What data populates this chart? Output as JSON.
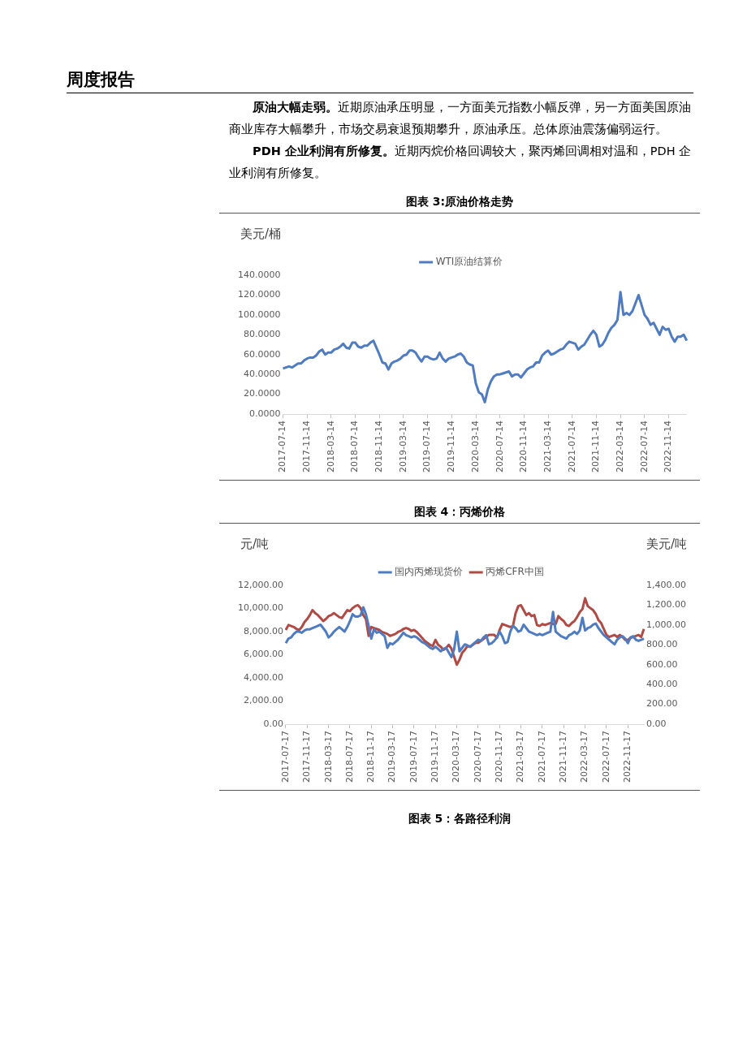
{
  "chart_data": [
    {
      "type": "other",
      "title": "周度报告",
      "annotations": [
        "原油大幅走弱。",
        "近期原油承压明显，一方面美元指数小幅反弹，另一方面美国原油商业库存大幅攀升，市场交易衰退预期攀升，原油承压。总体原油震荡偏弱运行。",
        "PDH 企业利润有所修复。",
        "近期丙烷价格回调较大，聚丙烯回调相对温和，PDH 企业利润有所修复。"
      ]
    },
    {
      "type": "line",
      "title": "图表 3:原油价格走势",
      "ylabel": "美元/桶",
      "legend": "top",
      "categories": [
        "2017-07-14",
        null,
        null,
        null,
        null,
        null,
        null,
        null,
        "2017-11-14",
        null,
        null,
        null,
        null,
        null,
        null,
        null,
        "2018-03-14",
        null,
        null,
        null,
        null,
        null,
        null,
        null,
        "2018-07-14",
        null,
        null,
        null,
        null,
        null,
        null,
        null,
        "2018-11-14",
        null,
        null,
        null,
        null,
        null,
        null,
        null,
        "2019-03-14",
        null,
        null,
        null,
        null,
        null,
        null,
        null,
        "2019-07-14",
        null,
        null,
        null,
        null,
        null,
        null,
        null,
        "2019-11-14",
        null,
        null,
        null,
        null,
        null,
        null,
        null,
        "2020-03-14",
        null,
        null,
        null,
        null,
        null,
        null,
        null,
        "2020-07-14",
        null,
        null,
        null,
        null,
        null,
        null,
        null,
        "2020-11-14",
        null,
        null,
        null,
        null,
        null,
        null,
        null,
        "2021-03-14",
        null,
        null,
        null,
        null,
        null,
        null,
        null,
        "2021-07-14",
        null,
        null,
        null,
        null,
        null,
        null,
        null,
        "2021-11-14",
        null,
        null,
        null,
        null,
        null,
        null,
        null,
        "2022-03-14",
        null,
        null,
        null,
        null,
        null,
        null,
        null,
        "2022-07-14",
        null,
        null,
        null,
        null,
        null,
        null,
        null,
        "2022-11-14",
        null,
        null,
        null,
        null,
        null,
        null
      ],
      "ylim": [
        0,
        140
      ],
      "yticks": [
        {
          "value": 0,
          "label": "0.0000"
        },
        {
          "value": 20,
          "label": "20.0000"
        },
        {
          "value": 40,
          "label": "40.0000"
        },
        {
          "value": 60,
          "label": "60.0000"
        },
        {
          "value": 80,
          "label": "80.0000"
        },
        {
          "value": 100,
          "label": "100.0000"
        },
        {
          "value": 120,
          "label": "120.0000"
        },
        {
          "value": 140,
          "label": "140.0000"
        }
      ],
      "series": [
        {
          "name": "WTI原油结算价",
          "color": "#4f7cc0",
          "values": [
            46,
            47,
            48,
            47,
            49,
            51,
            51,
            54,
            56,
            57,
            57,
            59,
            63,
            65,
            60,
            62,
            62,
            65,
            66,
            68,
            71,
            67,
            66,
            72,
            72,
            68,
            67,
            69,
            69,
            72,
            74,
            67,
            60,
            52,
            51,
            45,
            51,
            53,
            54,
            56,
            59,
            60,
            64,
            64,
            62,
            57,
            53,
            58,
            58,
            56,
            55,
            56,
            62,
            56,
            53,
            56,
            57,
            58,
            60,
            61,
            58,
            52,
            50,
            49,
            31,
            22,
            20,
            12,
            25,
            33,
            38,
            40,
            40,
            41,
            42,
            43,
            38,
            40,
            40,
            37,
            41,
            45,
            47,
            48,
            52,
            52,
            59,
            62,
            64,
            60,
            61,
            63,
            65,
            66,
            70,
            73,
            72,
            71,
            65,
            68,
            70,
            75,
            80,
            84,
            80,
            68,
            70,
            75,
            82,
            87,
            90,
            95,
            123,
            100,
            102,
            100,
            104,
            112,
            120,
            110,
            100,
            96,
            90,
            92,
            86,
            80,
            88,
            85,
            86,
            78,
            73,
            78,
            78,
            80,
            74
          ]
        }
      ]
    },
    {
      "type": "line",
      "title": "图表 4：丙烯价格",
      "ylabel": "元/吨",
      "y2label": "美元/吨",
      "legend": "top",
      "categories": [
        "2017-07-17",
        null,
        null,
        null,
        null,
        null,
        null,
        null,
        "2017-11-17",
        null,
        null,
        null,
        null,
        null,
        null,
        null,
        "2018-03-17",
        null,
        null,
        null,
        null,
        null,
        null,
        null,
        "2018-07-17",
        null,
        null,
        null,
        null,
        null,
        null,
        null,
        "2018-11-17",
        null,
        null,
        null,
        null,
        null,
        null,
        null,
        "2019-03-17",
        null,
        null,
        null,
        null,
        null,
        null,
        null,
        "2019-07-17",
        null,
        null,
        null,
        null,
        null,
        null,
        null,
        "2019-11-17",
        null,
        null,
        null,
        null,
        null,
        null,
        null,
        "2020-03-17",
        null,
        null,
        null,
        null,
        null,
        null,
        null,
        "2020-07-17",
        null,
        null,
        null,
        null,
        null,
        null,
        null,
        "2020-11-17",
        null,
        null,
        null,
        null,
        null,
        null,
        null,
        "2021-03-17",
        null,
        null,
        null,
        null,
        null,
        null,
        null,
        "2021-07-17",
        null,
        null,
        null,
        null,
        null,
        null,
        null,
        "2021-11-17",
        null,
        null,
        null,
        null,
        null,
        null,
        null,
        "2022-03-17",
        null,
        null,
        null,
        null,
        null,
        null,
        null,
        "2022-07-17",
        null,
        null,
        null,
        null,
        null,
        null,
        null,
        "2022-11-17",
        null,
        null,
        null,
        null,
        null,
        null
      ],
      "ylim": [
        0,
        12000
      ],
      "yticks": [
        {
          "value": 0,
          "label": "0.00"
        },
        {
          "value": 2000,
          "label": "2,000.00"
        },
        {
          "value": 4000,
          "label": "4,000.00"
        },
        {
          "value": 6000,
          "label": "6,000.00"
        },
        {
          "value": 8000,
          "label": "8,000.00"
        },
        {
          "value": 10000,
          "label": "10,000.00"
        },
        {
          "value": 12000,
          "label": "12,000.00"
        }
      ],
      "y2lim": [
        0,
        1400
      ],
      "y2ticks": [
        {
          "value": 0,
          "label": "0.00"
        },
        {
          "value": 200,
          "label": "200.00"
        },
        {
          "value": 400,
          "label": "400.00"
        },
        {
          "value": 600,
          "label": "600.00"
        },
        {
          "value": 800,
          "label": "800.00"
        },
        {
          "value": 1000,
          "label": "1,000.00"
        },
        {
          "value": 1200,
          "label": "1,200.00"
        },
        {
          "value": 1400,
          "label": "1,400.00"
        }
      ],
      "series": [
        {
          "name": "国内丙烯现货价",
          "color": "#4f7cc0",
          "values": [
            7000,
            7400,
            7500,
            7800,
            8000,
            8000,
            7900,
            8100,
            8200,
            8200,
            8300,
            8400,
            8500,
            8600,
            8300,
            8000,
            7500,
            7700,
            8000,
            8200,
            8400,
            8200,
            8000,
            8400,
            8900,
            9500,
            9300,
            9300,
            9400,
            10100,
            9500,
            8500,
            7400,
            8200,
            7900,
            8000,
            7800,
            7600,
            6600,
            7000,
            6900,
            7100,
            7300,
            7600,
            7900,
            7700,
            7600,
            7500,
            7600,
            7500,
            7300,
            7100,
            7000,
            6800,
            6600,
            6500,
            6700,
            6500,
            6300,
            6500,
            6600,
            6200,
            5800,
            6500,
            8000,
            6300,
            6600,
            6900,
            6800,
            6700,
            6900,
            7100,
            7300,
            7200,
            7500,
            7700,
            6900,
            7000,
            7200,
            7500,
            8000,
            7600,
            7000,
            7100,
            8000,
            8500,
            8300,
            8000,
            8100,
            8600,
            8300,
            8000,
            7900,
            7800,
            7700,
            7800,
            7700,
            7800,
            7900,
            8000,
            9700,
            8000,
            7800,
            7600,
            7500,
            7400,
            7700,
            7800,
            8000,
            7800,
            8100,
            9200,
            8100,
            8300,
            8400,
            8600,
            8700,
            8300,
            8000,
            7700,
            7500,
            7300,
            7100,
            6900,
            7300,
            7500,
            7600,
            7400,
            7000,
            7500,
            7600,
            7300,
            7200,
            7300,
            7400
          ]
        },
        {
          "name": "丙烯CFR中国",
          "color": "#b04a45",
          "axis": "y2",
          "values": [
            950,
            1000,
            990,
            980,
            960,
            950,
            980,
            1030,
            1060,
            1100,
            1150,
            1120,
            1100,
            1070,
            1040,
            1060,
            1090,
            1100,
            1120,
            1100,
            1080,
            1070,
            1110,
            1150,
            1140,
            1170,
            1190,
            1200,
            1170,
            1100,
            1060,
            890,
            980,
            970,
            960,
            950,
            930,
            920,
            910,
            890,
            900,
            910,
            930,
            940,
            960,
            970,
            960,
            940,
            950,
            930,
            900,
            870,
            840,
            820,
            800,
            790,
            850,
            800,
            780,
            750,
            770,
            800,
            760,
            680,
            600,
            650,
            720,
            750,
            790,
            780,
            800,
            820,
            820,
            840,
            860,
            880,
            900,
            900,
            900,
            870,
            950,
            1010,
            1000,
            990,
            980,
            990,
            1120,
            1190,
            1200,
            1150,
            1100,
            1120,
            1090,
            1100,
            1000,
            990,
            1010,
            1000,
            1010,
            1020,
            1010,
            1010,
            1090,
            1060,
            1040,
            1000,
            990,
            1020,
            1040,
            1080,
            1130,
            1160,
            1270,
            1190,
            1170,
            1150,
            1110,
            1050,
            1020,
            960,
            900,
            880,
            890,
            900,
            880,
            900,
            880,
            850,
            850,
            870,
            880,
            890,
            900,
            880,
            960
          ]
        }
      ]
    },
    {
      "type": "other",
      "title": "图表 5：各路径利润"
    }
  ]
}
